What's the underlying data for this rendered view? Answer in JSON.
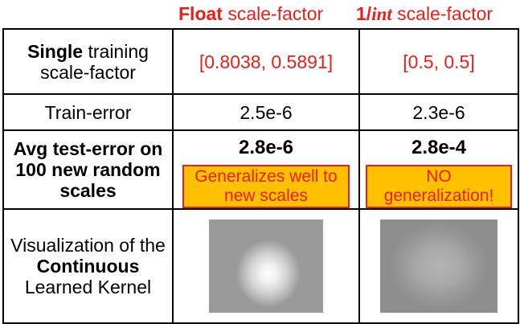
{
  "headers": {
    "float_bold": "Float",
    "float_rest": " scale-factor",
    "int_prefix": "1/",
    "int_italic": "int",
    "int_rest": " scale-factor"
  },
  "rows": {
    "training": {
      "label_bold": "Single",
      "label_rest": " training scale-factor",
      "float_value": "[0.8038, 0.5891]",
      "int_value": "[0.5, 0.5]"
    },
    "train_error": {
      "label": "Train-error",
      "float_value": "2.5e-6",
      "int_value": "2.3e-6"
    },
    "test_error": {
      "label": "Avg test-error on 100 new random scales",
      "float_value": "2.8e-6",
      "int_value": "2.8e-4",
      "float_callout": "Generalizes  well to new scales",
      "int_callout": "NO generalization!"
    },
    "visualization": {
      "label_pre": "Visualization of the",
      "label_bold": "Continuous",
      "label_post": "Learned Kernel"
    }
  },
  "colors": {
    "accent_red": "#e8201a",
    "callout_fill": "#ffc000",
    "kernel_gray": "#8e8e8e"
  }
}
